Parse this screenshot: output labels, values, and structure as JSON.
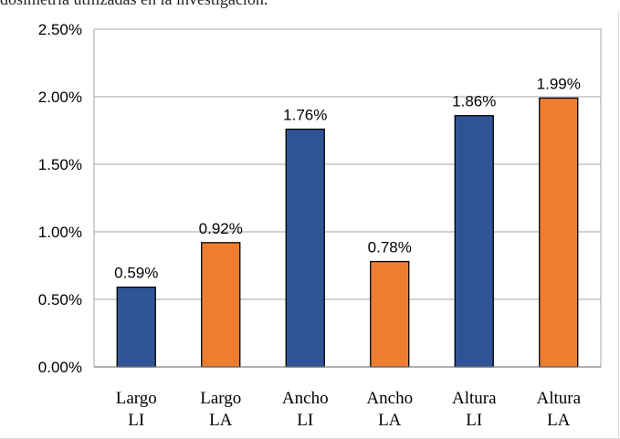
{
  "caption": "dosimetría utilizadas en la investigación.",
  "colors": {
    "li_bar": "#2f5597",
    "la_bar": "#ed7d31",
    "gridline": "#a6a6a6",
    "axis": "#7f7f7f"
  },
  "chart_data": {
    "type": "bar",
    "categories": [
      [
        "Largo",
        "LI"
      ],
      [
        "Largo",
        "LA"
      ],
      [
        "Ancho",
        "LI"
      ],
      [
        "Ancho",
        "LA"
      ],
      [
        "Altura",
        "LI"
      ],
      [
        "Altura",
        "LA"
      ]
    ],
    "values": [
      0.59,
      0.92,
      1.76,
      0.78,
      1.86,
      1.99
    ],
    "data_labels": [
      "0.59%",
      "0.92%",
      "1.76%",
      "0.78%",
      "1.86%",
      "1.99%"
    ],
    "bar_colors": [
      "#2f5597",
      "#ed7d31",
      "#2f5597",
      "#ed7d31",
      "#2f5597",
      "#ed7d31"
    ],
    "ylim": [
      0,
      2.5
    ],
    "yticks": [
      0,
      0.5,
      1.0,
      1.5,
      2.0,
      2.5
    ],
    "ytick_labels": [
      "0.00%",
      "0.50%",
      "1.00%",
      "1.50%",
      "2.00%",
      "2.50%"
    ],
    "title": "",
    "xlabel": "",
    "ylabel": "",
    "grid": true,
    "legend": "none"
  }
}
